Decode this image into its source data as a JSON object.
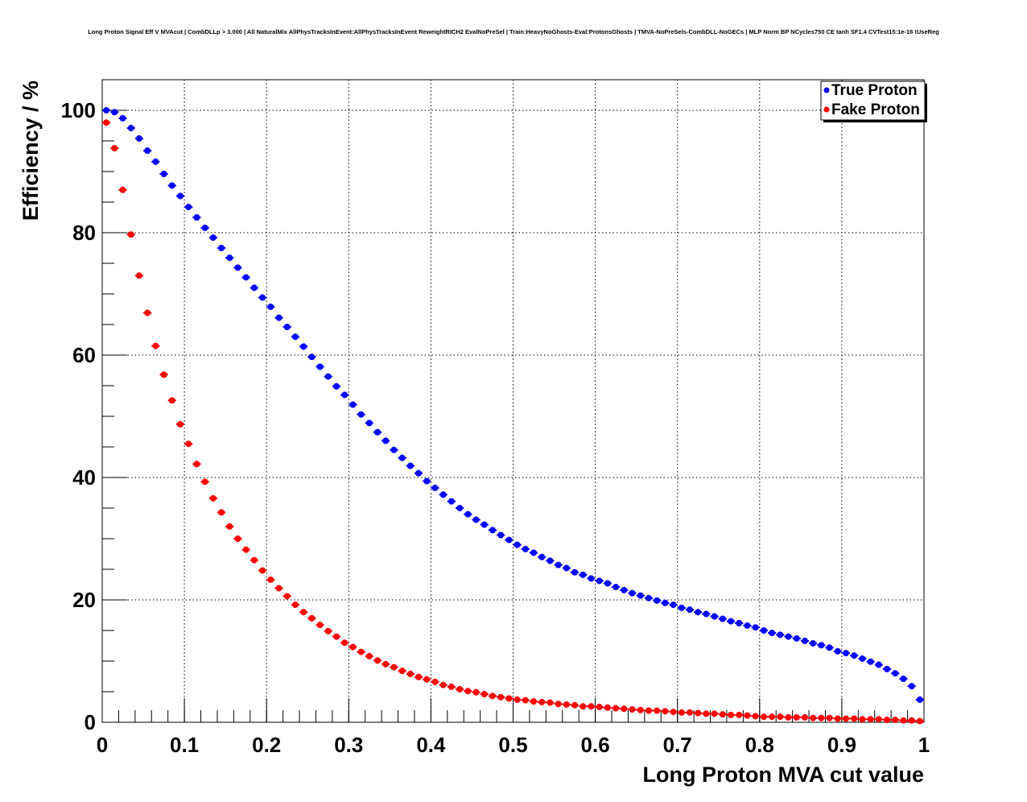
{
  "chart_data": {
    "type": "scatter",
    "title": "Long Proton Signal Eff V MVAcut | CombDLLp > 3.000 | All NaturalMix AllPhysTracksInEvent:AllPhysTracksInEvent ReweightRICH2 EvalNoPreSel | Train:HeavyNoGhosts-Eval:ProtonsGhosts | TMVA-NoPreSels-CombDLL-NoGECs | MLP Norm BP NCycles750 CE tanh SF1.4 CVTest15:1e-16 !UseReg",
    "xlabel": "Long Proton MVA cut value",
    "ylabel": "Efficiency / %",
    "xlim": [
      0,
      1
    ],
    "ylim": [
      0,
      105
    ],
    "bins": 100,
    "grid": true,
    "legend_position": "top-right",
    "x_ticks": [
      "0",
      "0.1",
      "0.2",
      "0.3",
      "0.4",
      "0.5",
      "0.6",
      "0.7",
      "0.8",
      "0.9",
      "1"
    ],
    "y_ticks": [
      "0",
      "20",
      "40",
      "60",
      "80",
      "100"
    ],
    "series": [
      {
        "name": "True Proton",
        "color": "#0000ff",
        "values": [
          100,
          99.7,
          98.7,
          97.1,
          95.4,
          93.4,
          91.6,
          89.6,
          87.7,
          86.0,
          84.2,
          82.5,
          80.8,
          79.2,
          77.5,
          75.9,
          74.3,
          72.7,
          71.0,
          69.4,
          67.9,
          66.1,
          64.6,
          63.0,
          61.4,
          59.7,
          58.1,
          56.5,
          54.9,
          53.5,
          51.9,
          50.3,
          48.9,
          47.4,
          46.0,
          44.5,
          43.2,
          41.9,
          40.7,
          39.4,
          38.3,
          37.2,
          36.1,
          35.0,
          34.0,
          33.1,
          32.3,
          31.4,
          30.6,
          29.8,
          29.0,
          28.3,
          27.7,
          27.0,
          26.4,
          25.7,
          25.2,
          24.5,
          24.1,
          23.5,
          23.1,
          22.7,
          22.1,
          21.6,
          21.1,
          20.7,
          20.3,
          19.9,
          19.5,
          19.2,
          18.7,
          18.4,
          18.0,
          17.7,
          17.3,
          16.9,
          16.5,
          16.2,
          15.8,
          15.5,
          15.0,
          14.6,
          14.3,
          14.0,
          13.7,
          13.3,
          12.9,
          12.6,
          12.2,
          11.6,
          11.3,
          10.9,
          10.4,
          9.9,
          9.4,
          8.7,
          8.0,
          7.1,
          5.9,
          3.7
        ]
      },
      {
        "name": "Fake Proton",
        "color": "#ff0000",
        "values": [
          98.0,
          93.8,
          87.0,
          79.7,
          73.0,
          66.9,
          61.5,
          56.8,
          52.6,
          48.7,
          45.5,
          42.2,
          39.3,
          36.6,
          34.3,
          32.0,
          30.0,
          28.2,
          26.5,
          24.8,
          23.3,
          21.9,
          20.6,
          19.2,
          18.0,
          17.0,
          15.9,
          14.9,
          14.0,
          13.0,
          12.3,
          11.5,
          10.8,
          10.1,
          9.5,
          9.0,
          8.4,
          7.9,
          7.4,
          7.0,
          6.6,
          6.1,
          5.8,
          5.4,
          5.1,
          4.9,
          4.6,
          4.3,
          4.1,
          3.9,
          3.7,
          3.6,
          3.4,
          3.3,
          3.2,
          3.0,
          2.9,
          2.8,
          2.6,
          2.6,
          2.5,
          2.4,
          2.3,
          2.2,
          2.1,
          2.0,
          1.9,
          1.9,
          1.8,
          1.7,
          1.6,
          1.6,
          1.5,
          1.4,
          1.4,
          1.3,
          1.2,
          1.2,
          1.1,
          1.0,
          0.9,
          0.9,
          0.9,
          0.8,
          0.8,
          0.8,
          0.7,
          0.7,
          0.7,
          0.6,
          0.6,
          0.6,
          0.5,
          0.5,
          0.5,
          0.4,
          0.4,
          0.3,
          0.3,
          0.2
        ]
      }
    ]
  }
}
